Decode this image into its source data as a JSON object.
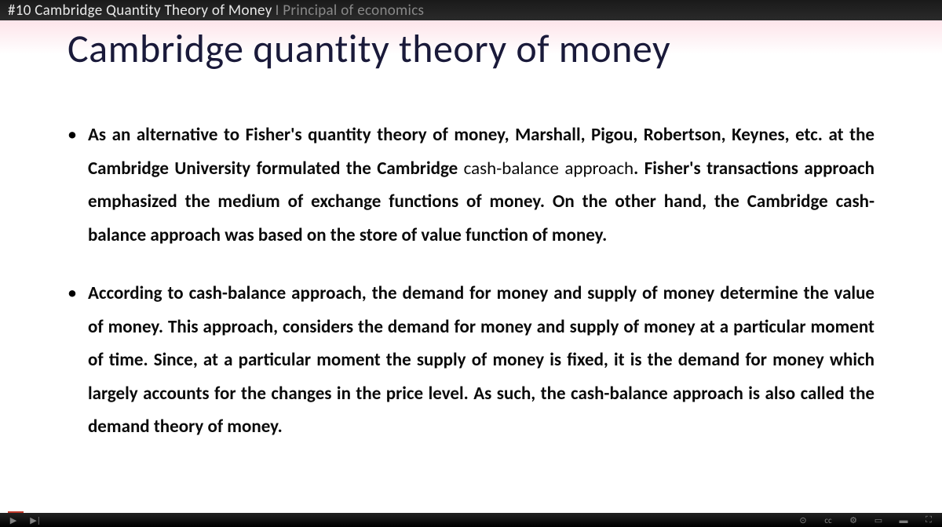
{
  "topbar": {
    "prefix": "#10 Cambridge Quantity Theory of Money",
    "suffix": "I Principal of economics"
  },
  "slide": {
    "title": "Cambridge quantity theory of money",
    "bullets": [
      {
        "html": "As an alternative to Fisher's quantity theory of money, Marshall, Pigou, Robertson, Keynes, etc. at the Cambridge University formulated the Cambridge <span class='light'>cash-balance approach</span>. Fisher's transactions approach emphasized the medium of exchange functions of money. On the other hand, the Cambridge cash-balance approach was based on the store of value function of money."
      },
      {
        "html": "According to cash-balance approach, the demand for money and supply of money determine the value of money. This approach, considers the demand for money and supply of money at a particular moment of time. Since, at a particular moment the supply of money is fixed, it is the demand for money which largely accounts for the changes in the price level. As such, the cash-balance approach is also called the demand theory of money."
      }
    ]
  },
  "colors": {
    "title": "#1a1a3a",
    "body": "#0a0a0a",
    "topbar_bg": "#1a1a1a",
    "topbar_text": "#e8e8e8"
  }
}
